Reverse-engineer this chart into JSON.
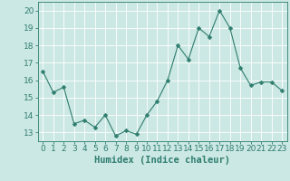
{
  "x": [
    0,
    1,
    2,
    3,
    4,
    5,
    6,
    7,
    8,
    9,
    10,
    11,
    12,
    13,
    14,
    15,
    16,
    17,
    18,
    19,
    20,
    21,
    22,
    23
  ],
  "y": [
    16.5,
    15.3,
    15.6,
    13.5,
    13.7,
    13.3,
    14.0,
    12.8,
    13.1,
    12.9,
    14.0,
    14.8,
    16.0,
    18.0,
    17.2,
    19.0,
    18.5,
    20.0,
    19.0,
    16.7,
    15.7,
    15.9,
    15.9,
    15.4
  ],
  "line_color": "#2e7d6e",
  "marker": "D",
  "marker_size": 2.5,
  "bg_color": "#cce8e4",
  "grid_color": "#ffffff",
  "xlabel": "Humidex (Indice chaleur)",
  "ylabel": "",
  "yticks": [
    13,
    14,
    15,
    16,
    17,
    18,
    19,
    20
  ],
  "xtick_labels": [
    "0",
    "1",
    "2",
    "3",
    "4",
    "5",
    "6",
    "7",
    "8",
    "9",
    "10",
    "11",
    "12",
    "13",
    "14",
    "15",
    "16",
    "17",
    "18",
    "19",
    "20",
    "21",
    "22",
    "23"
  ],
  "ylim": [
    12.5,
    20.5
  ],
  "xlim": [
    -0.5,
    23.5
  ],
  "axis_label_color": "#2e7d6e",
  "tick_color": "#2e7d6e",
  "xlabel_fontsize": 7.5,
  "tick_fontsize": 6.5
}
